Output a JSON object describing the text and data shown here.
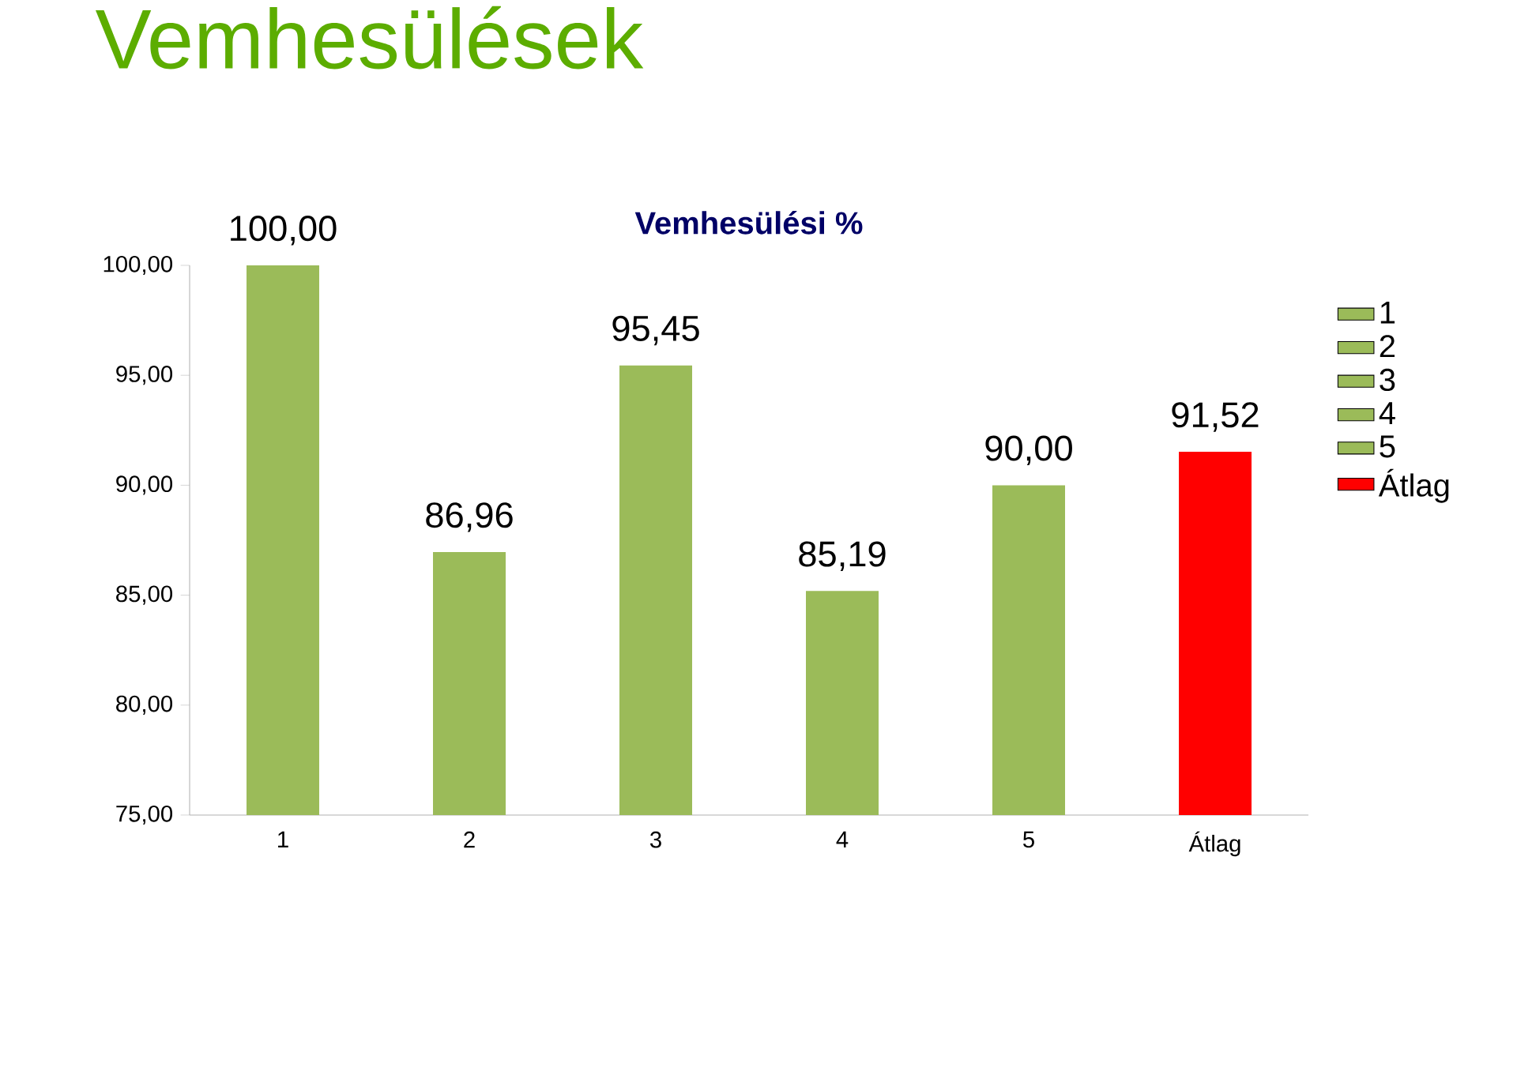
{
  "chart_data": {
    "type": "bar",
    "title": "Vemhesülések",
    "subtitle": "Vemhesülési %",
    "categories": [
      "1",
      "2",
      "3",
      "4",
      "5",
      "Átlag"
    ],
    "series": [
      {
        "name": "1",
        "color": "#9bbb59",
        "values": [
          100,
          null,
          null,
          null,
          null,
          null
        ],
        "value_labels": [
          "100,00",
          null,
          null,
          null,
          null,
          null
        ]
      },
      {
        "name": "2",
        "color": "#9bbb59",
        "values": [
          null,
          86.96,
          null,
          null,
          null,
          null
        ],
        "value_labels": [
          null,
          "86,96",
          null,
          null,
          null,
          null
        ]
      },
      {
        "name": "3",
        "color": "#9bbb59",
        "values": [
          null,
          null,
          95.45,
          null,
          null,
          null
        ],
        "value_labels": [
          null,
          null,
          "95,45",
          null,
          null,
          null
        ]
      },
      {
        "name": "4",
        "color": "#9bbb59",
        "values": [
          null,
          null,
          null,
          85.19,
          null,
          null
        ],
        "value_labels": [
          null,
          null,
          null,
          "85,19",
          null,
          null
        ]
      },
      {
        "name": "5",
        "color": "#9bbb59",
        "values": [
          null,
          null,
          null,
          null,
          90,
          null
        ],
        "value_labels": [
          null,
          null,
          null,
          null,
          "90,00",
          null
        ]
      },
      {
        "name": "Átlag",
        "color": "#ff0000",
        "values": [
          null,
          null,
          null,
          null,
          null,
          91.52
        ],
        "value_labels": [
          null,
          null,
          null,
          null,
          null,
          "91,52"
        ]
      }
    ],
    "ylim": [
      75,
      100
    ],
    "yticks": [
      {
        "value": 75,
        "label": "75,00"
      },
      {
        "value": 80,
        "label": "80,00"
      },
      {
        "value": 85,
        "label": "85,00"
      },
      {
        "value": 90,
        "label": "90,00"
      },
      {
        "value": 95,
        "label": "95,00"
      },
      {
        "value": 100,
        "label": "100,00"
      }
    ],
    "legend": "right"
  }
}
